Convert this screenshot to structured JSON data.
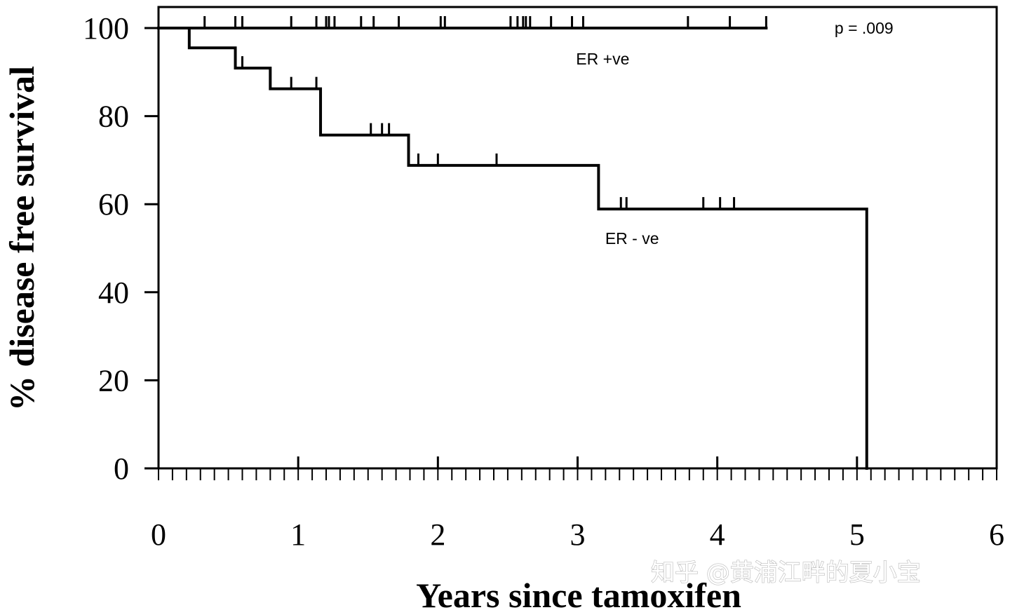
{
  "chart_data": {
    "type": "line",
    "subtype": "kaplan-meier-step",
    "xlabel": "Years since tamoxifen",
    "ylabel": "% disease free survival",
    "xlim": [
      0,
      6
    ],
    "ylim": [
      0,
      100
    ],
    "x_ticks": [
      "0",
      "1",
      "2",
      "3",
      "4",
      "5",
      "6"
    ],
    "x_tick_values": [
      0,
      1,
      2,
      3,
      4,
      5,
      6
    ],
    "x_minor_tick_step": 0.1,
    "y_ticks": [
      "0",
      "20",
      "40",
      "60",
      "80",
      "100"
    ],
    "y_tick_values": [
      0,
      20,
      40,
      60,
      80,
      100
    ],
    "grid": false,
    "legend": "none",
    "series": [
      {
        "name": "ER +ve",
        "line_color": "#000000",
        "steps": [
          {
            "x": 0.0,
            "y": 100
          },
          {
            "x": 4.35,
            "y": 100
          }
        ],
        "censored": [
          0.33,
          0.55,
          0.6,
          0.95,
          1.13,
          1.2,
          1.22,
          1.26,
          1.45,
          1.54,
          1.72,
          2.02,
          2.05,
          2.52,
          2.57,
          2.61,
          2.63,
          2.66,
          2.81,
          2.96,
          3.04,
          3.79,
          4.09,
          4.35
        ]
      },
      {
        "name": "ER - ve",
        "line_color": "#000000",
        "steps": [
          {
            "x": 0.0,
            "y": 100
          },
          {
            "x": 0.22,
            "y": 95.5
          },
          {
            "x": 0.55,
            "y": 90.9
          },
          {
            "x": 0.8,
            "y": 86.2
          },
          {
            "x": 1.16,
            "y": 75.7
          },
          {
            "x": 1.79,
            "y": 68.8
          },
          {
            "x": 3.15,
            "y": 58.9
          },
          {
            "x": 5.07,
            "y": 0
          }
        ],
        "censored": [
          0.6,
          0.95,
          1.13,
          1.52,
          1.6,
          1.65,
          1.86,
          2.0,
          2.42,
          3.31,
          3.35,
          3.9,
          4.02,
          4.12
        ]
      }
    ],
    "annotations": [
      {
        "text": "p = .009",
        "x": 5.05,
        "y": 100
      },
      {
        "text": "ER +ve",
        "x": 3.18,
        "y": 93
      },
      {
        "text": "ER - ve",
        "x": 3.39,
        "y": 52.2
      }
    ]
  },
  "watermark_text": "知乎 @黄浦江畔的夏小宝"
}
